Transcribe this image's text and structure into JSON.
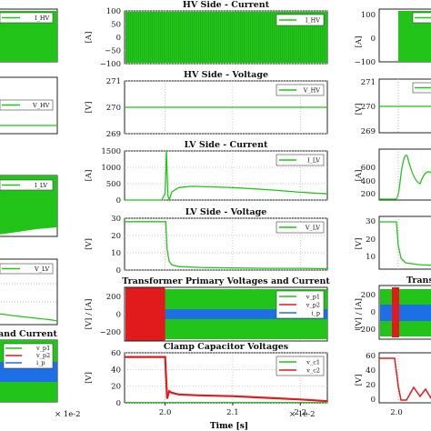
{
  "figure": {
    "xlabel": "Time [s]",
    "x_exponent_left": "× 1e-2",
    "x_exponent_center": "× 1e-2",
    "x_ticks": [
      "2.0",
      "2.1",
      "2.2"
    ],
    "left_partial_title": "and Current",
    "right_partial_title": "Transf"
  },
  "colors": {
    "green": "#22c41a",
    "red": "#e11b1b",
    "blue": "#1e6fe6"
  },
  "chart_data": [
    {
      "id": "hv_current",
      "type": "line",
      "title": "HV Side - Current",
      "ylabel": "[A]",
      "ylim": [
        -100,
        100
      ],
      "yticks": [
        "100",
        "50",
        "0",
        "−50",
        "−100"
      ],
      "legend": [
        {
          "name": "I_HV",
          "color": "green"
        }
      ],
      "description": "dense oscillation between -100 and 100 A, starting at 2.0"
    },
    {
      "id": "hv_voltage",
      "type": "line",
      "title": "HV Side - Voltage",
      "ylabel": "[V]",
      "ylim": [
        269,
        271
      ],
      "yticks": [
        "271",
        "270",
        "269"
      ],
      "legend": [
        {
          "name": "V_HV",
          "color": "green"
        }
      ],
      "series": [
        {
          "name": "V_HV",
          "x": [
            1.94,
            2.24
          ],
          "y": [
            270,
            270
          ]
        }
      ]
    },
    {
      "id": "lv_current",
      "type": "line",
      "title": "LV Side - Current",
      "ylabel": "[A]",
      "ylim": [
        0,
        1500
      ],
      "yticks": [
        "1500",
        "1000",
        "500",
        "0"
      ],
      "legend": [
        {
          "name": "I_LV",
          "color": "green"
        }
      ],
      "series": [
        {
          "name": "I_LV",
          "x": [
            1.94,
            1.995,
            2.0,
            2.002,
            2.004,
            2.006,
            2.01,
            2.02,
            2.04,
            2.1,
            2.15,
            2.2,
            2.24
          ],
          "y": [
            0,
            0,
            200,
            1650,
            150,
            -100,
            250,
            380,
            420,
            380,
            320,
            240,
            190
          ]
        }
      ]
    },
    {
      "id": "lv_voltage",
      "type": "line",
      "title": "LV Side - Voltage",
      "ylabel": "[V]",
      "ylim": [
        0,
        30
      ],
      "yticks": [
        "30",
        "20",
        "10",
        "0"
      ],
      "legend": [
        {
          "name": "V_LV",
          "color": "green"
        }
      ],
      "series": [
        {
          "name": "V_LV",
          "x": [
            1.94,
            1.999,
            2.001,
            2.003,
            2.006,
            2.01,
            2.02,
            2.05,
            2.1,
            2.15,
            2.2,
            2.24
          ],
          "y": [
            28,
            28,
            28,
            12,
            5,
            3,
            2,
            1.5,
            1.2,
            1,
            1,
            0.8
          ]
        }
      ]
    },
    {
      "id": "primary",
      "type": "area",
      "title": "Transformer Primary Voltages and Current",
      "ylabel": "[V] / [A]",
      "ylim": [
        -300,
        300
      ],
      "yticks": [
        "200",
        "0",
        "−200"
      ],
      "legend": [
        {
          "name": "v_p1",
          "color": "green"
        },
        {
          "name": "v_p2",
          "color": "red"
        },
        {
          "name": "i_p",
          "color": "blue"
        }
      ],
      "description": "v_p1 spans ±280 V, v_p2 visible as a red burst from 1.94 to 2.0, i_p band about ±55 A"
    },
    {
      "id": "clamp",
      "type": "line",
      "title": "Clamp Capacitor Voltages",
      "ylabel": "[V]",
      "ylim": [
        0,
        60
      ],
      "yticks": [
        "60",
        "40",
        "20",
        "0"
      ],
      "legend": [
        {
          "name": "v_c1",
          "color": "green"
        },
        {
          "name": "v_c2",
          "color": "red"
        }
      ],
      "series": [
        {
          "name": "v_c2",
          "x": [
            1.94,
            2.0,
            2.003,
            2.006,
            2.01,
            2.02,
            2.05,
            2.1,
            2.15,
            2.2,
            2.24
          ],
          "y": [
            55,
            55,
            5,
            14,
            12,
            10,
            9,
            8,
            6,
            4,
            2
          ]
        }
      ]
    }
  ]
}
